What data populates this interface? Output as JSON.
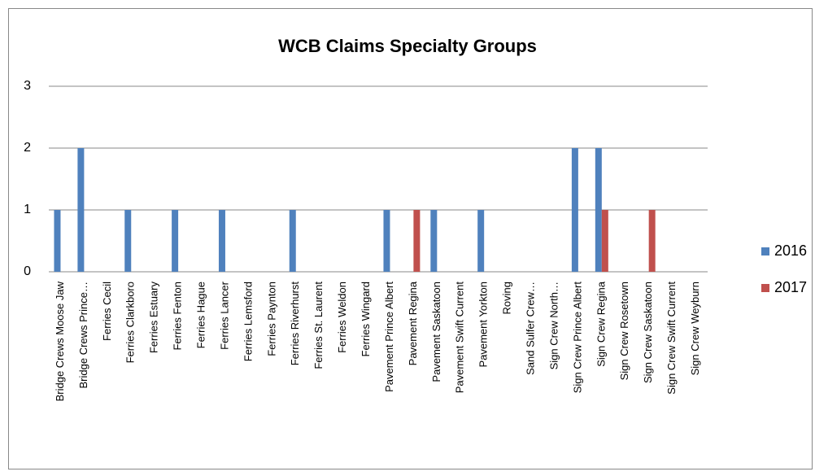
{
  "chart_data": {
    "type": "bar",
    "title": "WCB Claims Specialty Groups",
    "categories": [
      "Bridge Crews Moose Jaw",
      "Bridge Crews Prince…",
      "Ferries Cecil",
      "Ferries Clarkboro",
      "Ferries Estuary",
      "Ferries Fenton",
      "Ferries Hague",
      "Ferries Lancer",
      "Ferries Lemsford",
      "Ferries Paynton",
      "Ferries Riverhurst",
      "Ferries St. Laurent",
      "Ferries Weldon",
      "Ferries Wingard",
      "Pavement Prince Albert",
      "Pavement Regina",
      "Pavement Saskatoon",
      "Pavement Swift Current",
      "Pavement Yorkton",
      "Roving",
      "Sand Sulfer Crew…",
      "Sign Crew North…",
      "Sign Crew Prince Albert",
      "Sign Crew Regina",
      "Sign Crew Rosetown",
      "Sign Crew Saskatoon",
      "Sign Crew Swift Current",
      "Sign Crew Weyburn"
    ],
    "series": [
      {
        "name": "2016",
        "color": "#4f81bd",
        "values": [
          1,
          2,
          0,
          1,
          0,
          1,
          0,
          1,
          0,
          0,
          1,
          0,
          0,
          0,
          1,
          0,
          1,
          0,
          1,
          0,
          0,
          0,
          2,
          2,
          0,
          0,
          0,
          0
        ]
      },
      {
        "name": "2017",
        "color": "#c0504d",
        "values": [
          0,
          0,
          0,
          0,
          0,
          0,
          0,
          0,
          0,
          0,
          0,
          0,
          0,
          0,
          0,
          1,
          0,
          0,
          0,
          0,
          0,
          0,
          0,
          1,
          0,
          1,
          0,
          0
        ]
      }
    ],
    "ylim": [
      0,
      3
    ],
    "yticks": [
      0,
      1,
      2,
      3
    ],
    "grid": true,
    "legend": "right"
  }
}
